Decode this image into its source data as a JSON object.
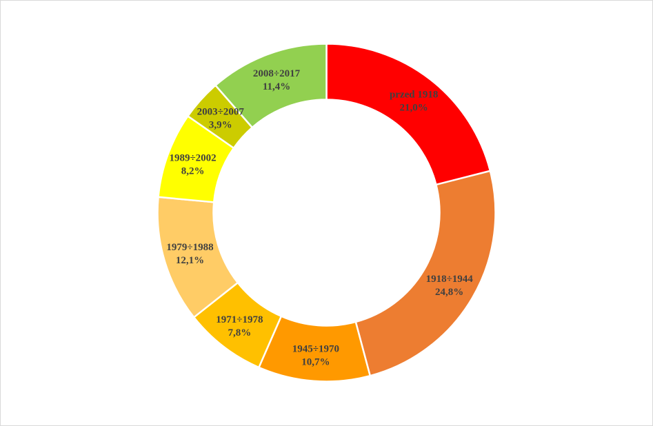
{
  "chart_data": {
    "type": "pie",
    "variant": "donut",
    "legend": "none",
    "title": "",
    "slices": [
      {
        "label": "przed 1918",
        "value": 21.0,
        "value_label": "21,0%",
        "color": "#ff0000"
      },
      {
        "label": "1918÷1944",
        "value": 24.8,
        "value_label": "24,8%",
        "color": "#ed7d31"
      },
      {
        "label": "1945÷1970",
        "value": 10.7,
        "value_label": "10,7%",
        "color": "#ff9900"
      },
      {
        "label": "1971÷1978",
        "value": 7.8,
        "value_label": "7,8%",
        "color": "#ffc000"
      },
      {
        "label": "1979÷1988",
        "value": 12.1,
        "value_label": "12,1%",
        "color": "#ffcc66"
      },
      {
        "label": "1989÷2002",
        "value": 8.2,
        "value_label": "8,2%",
        "color": "#ffff00"
      },
      {
        "label": "2003÷2007",
        "value": 3.9,
        "value_label": "3,9%",
        "color": "#cccc00"
      },
      {
        "label": "2008÷2017",
        "value": 11.4,
        "value_label": "11,4%",
        "color": "#92d050"
      }
    ]
  }
}
